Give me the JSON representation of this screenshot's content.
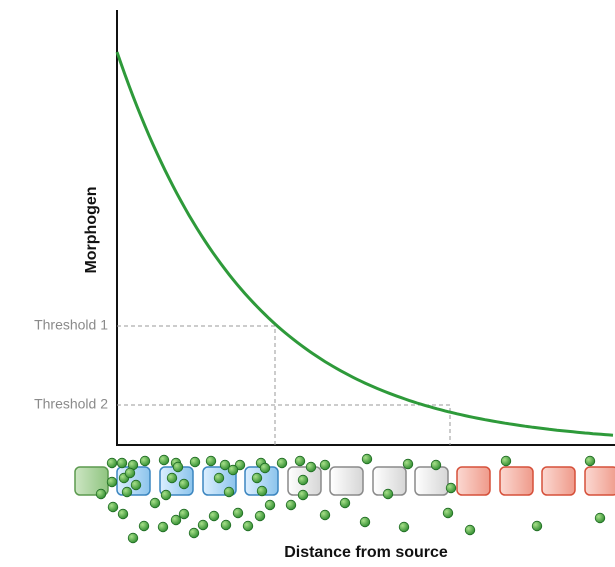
{
  "y_axis_label": "Morphogen",
  "x_axis_label": "Distance from source",
  "thresholds": [
    "Threshold 1",
    "Threshold 2"
  ]
}
